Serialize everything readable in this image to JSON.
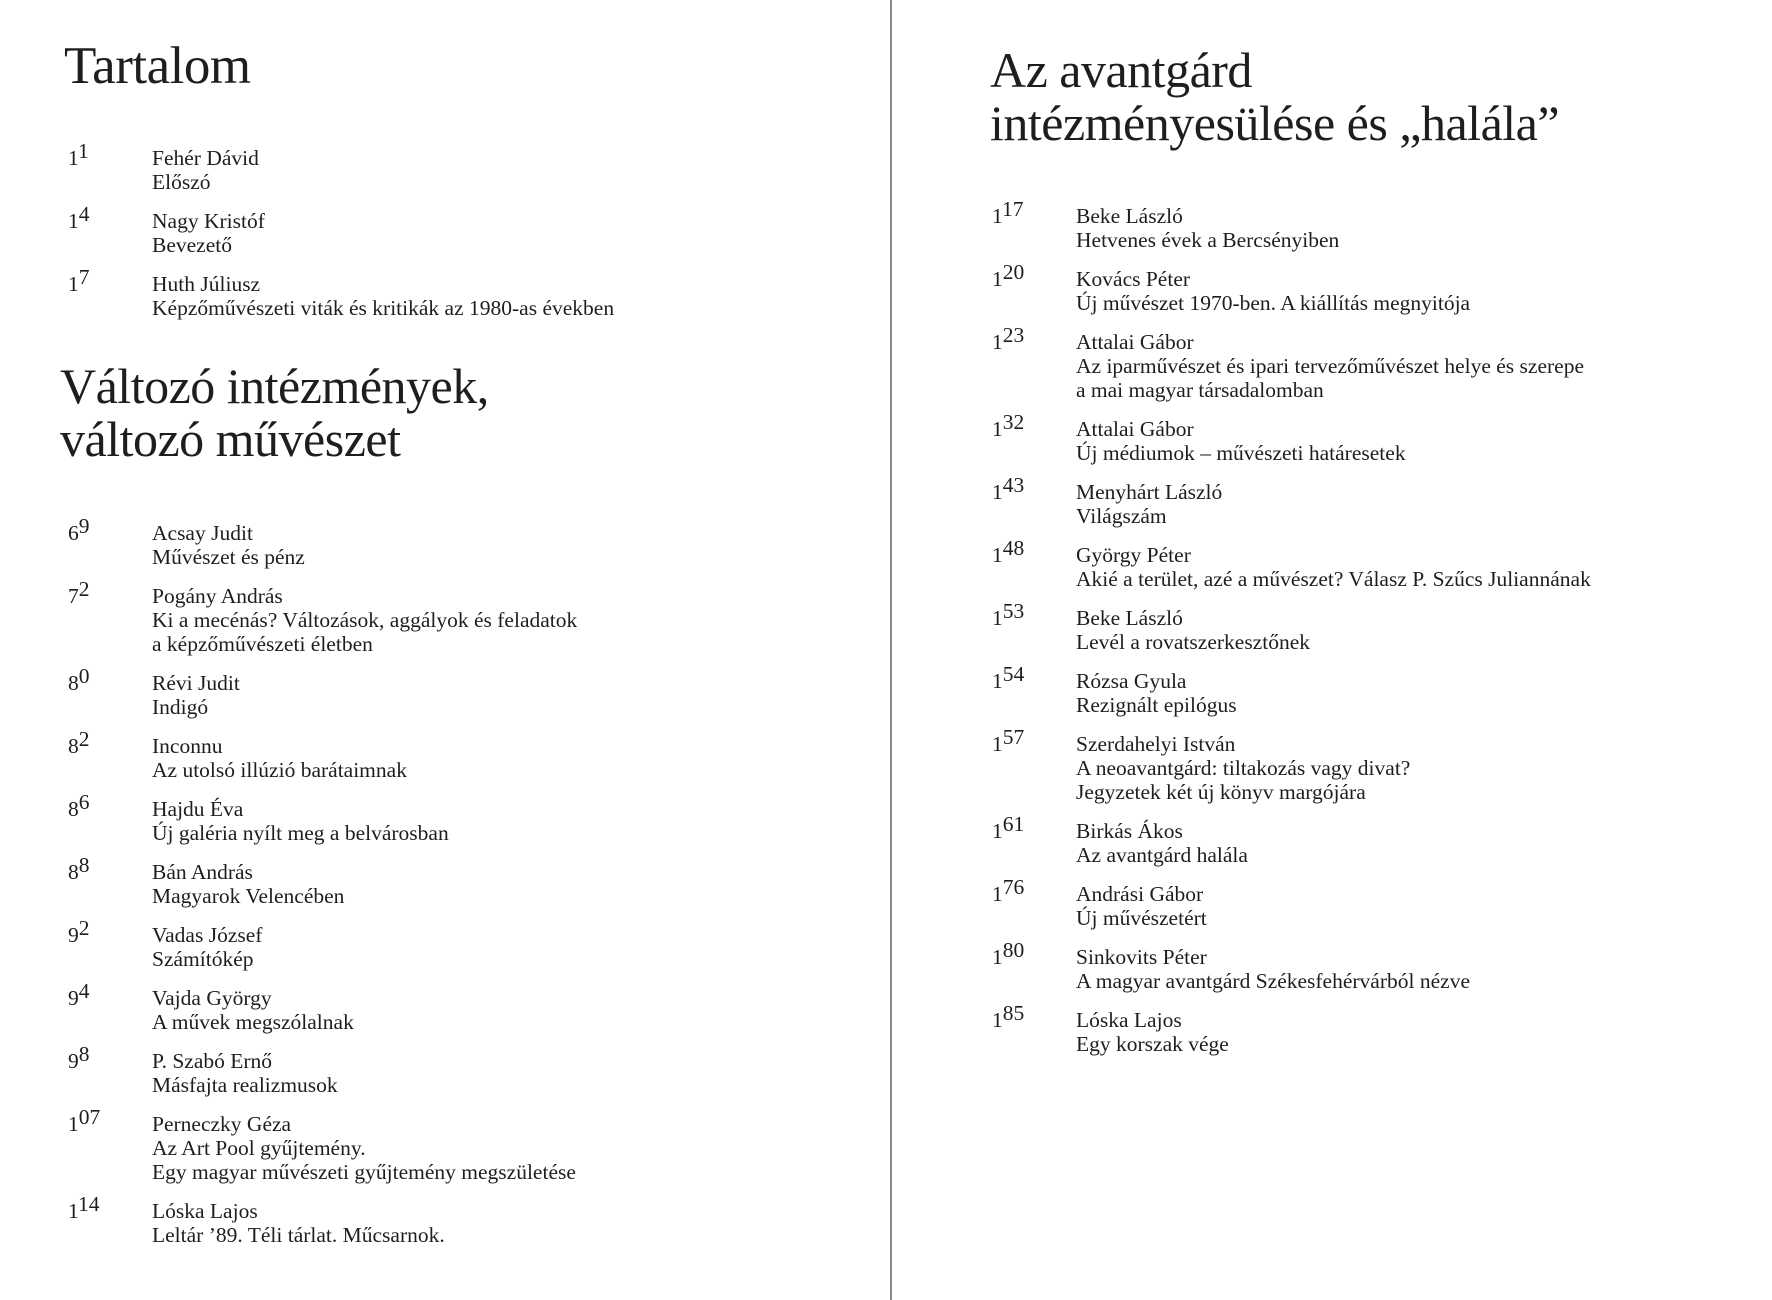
{
  "contents_title": "Tartalom",
  "intro_entries": [
    {
      "page": "11",
      "author": "Fehér Dávid",
      "title": [
        "Előszó"
      ]
    },
    {
      "page": "14",
      "author": "Nagy Kristóf",
      "title": [
        "Bevezető"
      ]
    },
    {
      "page": "17",
      "author": "Huth Júliusz",
      "title": [
        "Képzőművészeti viták és kritikák az 1980-as években"
      ]
    }
  ],
  "section1": {
    "title_lines": [
      "Változó intézmények,",
      "változó művészet"
    ],
    "entries": [
      {
        "page": "69",
        "author": "Acsay Judit",
        "title": [
          "Művészet és pénz"
        ]
      },
      {
        "page": "72",
        "author": "Pogány András",
        "title": [
          "Ki a mecénás? Változások, aggályok és feladatok",
          "a képzőművészeti életben"
        ]
      },
      {
        "page": "80",
        "author": "Révi Judit",
        "title": [
          "Indigó"
        ]
      },
      {
        "page": "82",
        "author": "Inconnu",
        "title": [
          "Az utolsó illúzió barátaimnak"
        ]
      },
      {
        "page": "86",
        "author": "Hajdu Éva",
        "title": [
          "Új galéria nyílt meg a belvárosban"
        ]
      },
      {
        "page": "88",
        "author": "Bán András",
        "title": [
          "Magyarok Velencében"
        ]
      },
      {
        "page": "92",
        "author": "Vadas József",
        "title": [
          "Számítókép"
        ]
      },
      {
        "page": "94",
        "author": "Vajda György",
        "title": [
          "A művek megszólalnak"
        ]
      },
      {
        "page": "98",
        "author": "P. Szabó Ernő",
        "title": [
          "Másfajta realizmusok"
        ]
      },
      {
        "page": "107",
        "author": "Perneczky Géza",
        "title": [
          "Az Art Pool gyűjtemény.",
          "Egy magyar művészeti gyűjtemény megszületése"
        ]
      },
      {
        "page": "114",
        "author": "Lóska Lajos",
        "title": [
          "Leltár ’89. Téli tárlat. Műcsarnok."
        ]
      }
    ]
  },
  "section2": {
    "title_lines": [
      "Az avantgárd",
      "intézményesülése és „halála”"
    ],
    "entries": [
      {
        "page": "117",
        "author": "Beke László",
        "title": [
          "Hetvenes évek a Bercsényiben"
        ]
      },
      {
        "page": "120",
        "author": "Kovács Péter",
        "title": [
          "Új művészet 1970-ben. A kiállítás megnyitója"
        ]
      },
      {
        "page": "123",
        "author": "Attalai Gábor",
        "title": [
          "Az iparművészet és ipari tervezőművészet helye és szerepe",
          "a mai magyar társadalomban"
        ]
      },
      {
        "page": "132",
        "author": "Attalai Gábor",
        "title": [
          "Új médiumok – művészeti határesetek"
        ]
      },
      {
        "page": "143",
        "author": "Menyhárt László",
        "title": [
          "Világszám"
        ]
      },
      {
        "page": "148",
        "author": "György Péter",
        "title": [
          "Akié a terület, azé a művészet? Válasz P. Szűcs Juliannának"
        ]
      },
      {
        "page": "153",
        "author": "Beke László",
        "title": [
          "Levél a rovatszerkesztőnek"
        ]
      },
      {
        "page": "154",
        "author": "Rózsa Gyula",
        "title": [
          "Rezignált epilógus"
        ]
      },
      {
        "page": "157",
        "author": "Szerdahelyi István",
        "title": [
          "A neoavantgárd: tiltakozás vagy divat?",
          "Jegyzetek két új könyv margójára"
        ]
      },
      {
        "page": "161",
        "author": "Birkás Ákos",
        "title": [
          "Az avantgárd halála"
        ]
      },
      {
        "page": "176",
        "author": "Andrási Gábor",
        "title": [
          "Új művészetért"
        ]
      },
      {
        "page": "180",
        "author": "Sinkovits Péter",
        "title": [
          "A magyar avantgárd Székesfehérvárból nézve"
        ]
      },
      {
        "page": "185",
        "author": "Lóska Lajos",
        "title": [
          "Egy korszak vége"
        ]
      }
    ]
  }
}
